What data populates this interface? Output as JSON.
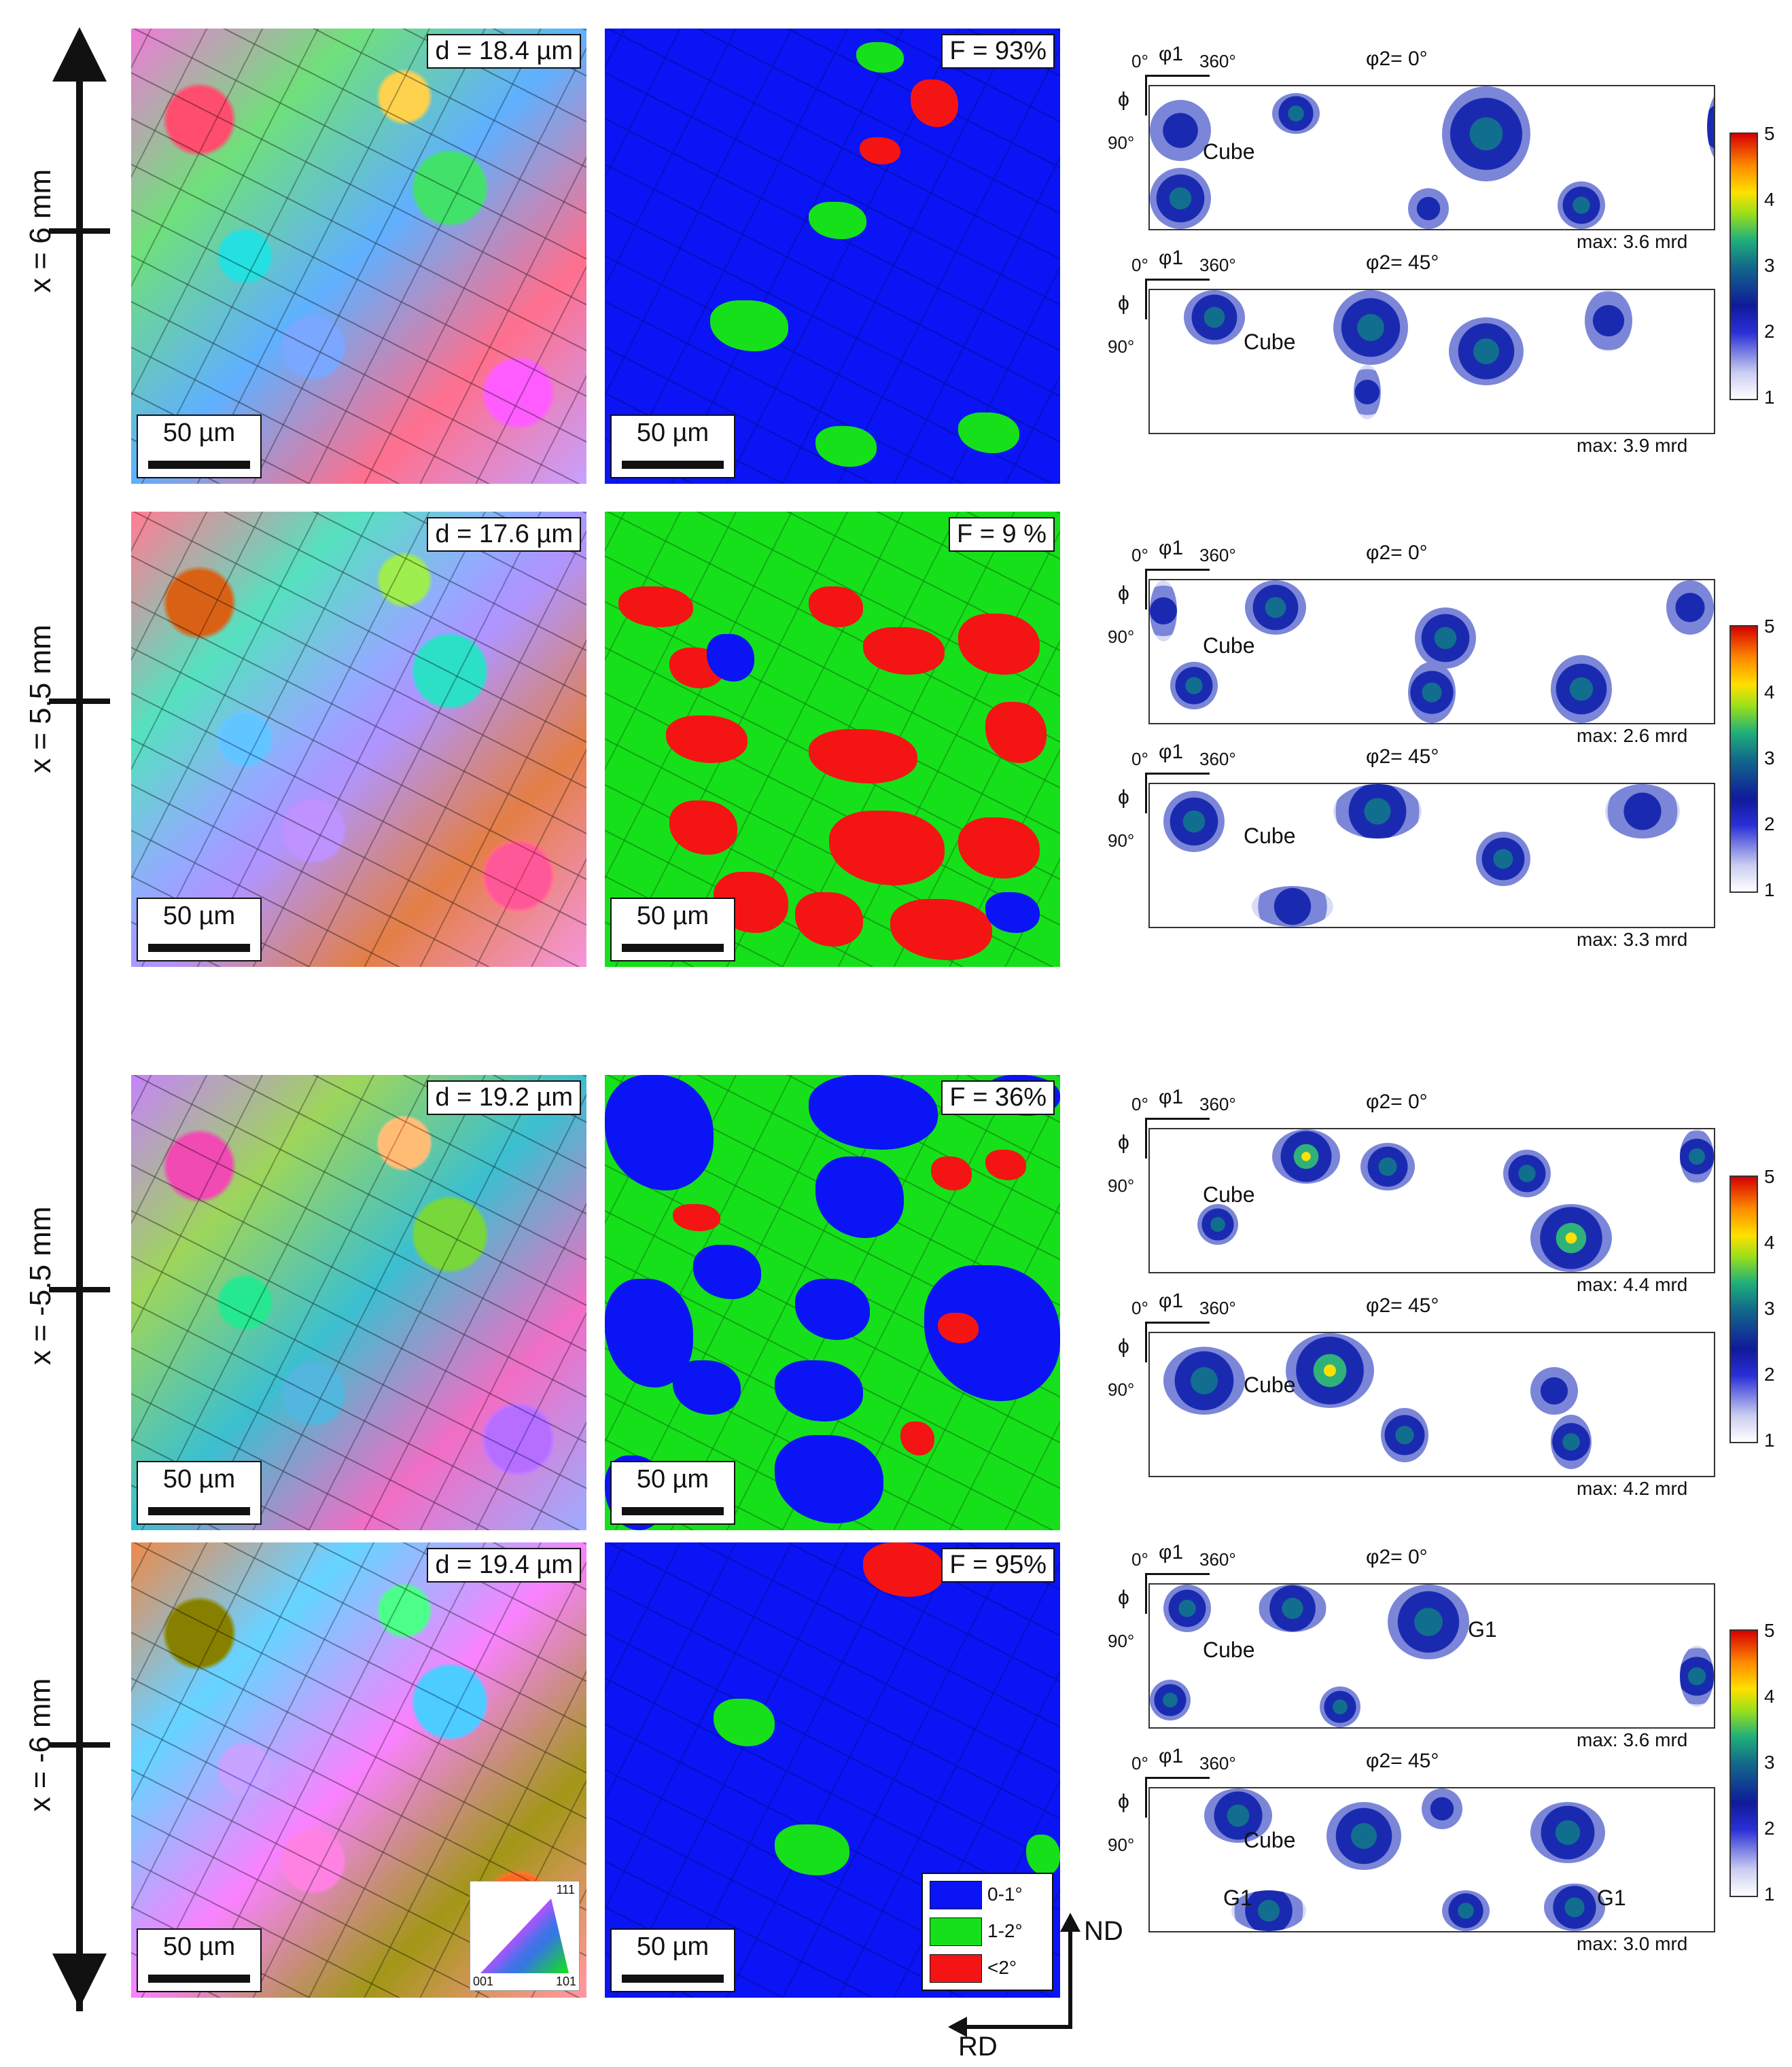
{
  "positions": [
    "x = 6 mm",
    "x = 5.5 mm",
    "x = -5.5 mm",
    "x = -6 mm"
  ],
  "rows": [
    {
      "grain_size": "d = 18.4 µm",
      "fraction": "F = 93%",
      "scale": "50 µm",
      "odf": [
        {
          "phi2": "φ2= 0°",
          "max": "max: 3.6 mrd",
          "label": "Cube"
        },
        {
          "phi2": "φ2= 45°",
          "max": "max: 3.9 mrd",
          "label": "Cube"
        }
      ]
    },
    {
      "grain_size": "d = 17.6 µm",
      "fraction": "F = 9 %",
      "scale": "50 µm",
      "odf": [
        {
          "phi2": "φ2= 0°",
          "max": "max: 2.6 mrd",
          "label": "Cube"
        },
        {
          "phi2": "φ2= 45°",
          "max": "max: 3.3 mrd",
          "label": "Cube"
        }
      ]
    },
    {
      "grain_size": "d = 19.2 µm",
      "fraction": "F = 36%",
      "scale": "50 µm",
      "odf": [
        {
          "phi2": "φ2= 0°",
          "max": "max: 4.4 mrd",
          "label": "Cube"
        },
        {
          "phi2": "φ2= 45°",
          "max": "max: 4.2 mrd",
          "label": "Cube"
        }
      ]
    },
    {
      "grain_size": "d = 19.4 µm",
      "fraction": "F = 95%",
      "scale": "50 µm",
      "odf": [
        {
          "phi2": "φ2= 0°",
          "max": "max: 3.6 mrd",
          "label": "Cube",
          "extra": "G1"
        },
        {
          "phi2": "φ2= 45°",
          "max": "max: 3.0 mrd",
          "label": "Cube",
          "extra": "G1",
          "extra2": "G1"
        }
      ]
    }
  ],
  "odf_axes": {
    "phi1": "φ1",
    "zero": "0°",
    "end": "360°",
    "phi": "ϕ",
    "ninety": "90°"
  },
  "colorbar_ticks": [
    "5",
    "4",
    "3",
    "2",
    "1"
  ],
  "legend": [
    {
      "label": "0-1°",
      "color": "#0a14f5"
    },
    {
      "label": "1-2°",
      "color": "#16e01a"
    },
    {
      "label": "<2°",
      "color": "#f51414"
    }
  ],
  "ipf_key": {
    "top": "111",
    "left": "001",
    "right": "101"
  },
  "sample_axes": {
    "nd": "ND",
    "rd": "RD"
  }
}
